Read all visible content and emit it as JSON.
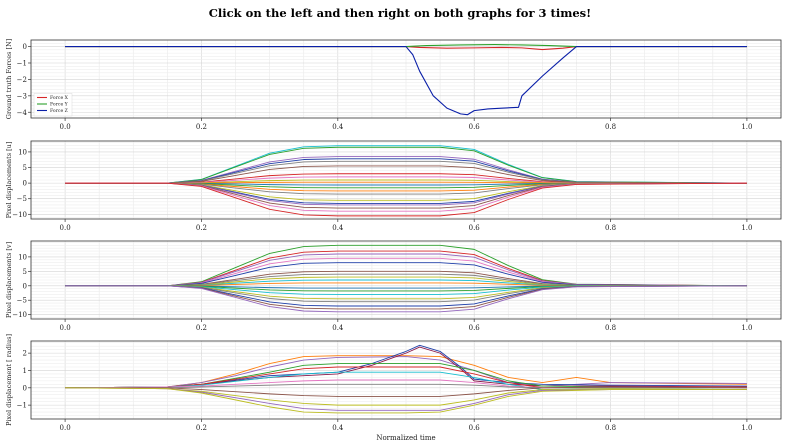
{
  "title": "Click on the left and then right on both graphs for 3 times!",
  "chart_data": [
    {
      "type": "line",
      "ylabel": "Ground truth Forces [N]",
      "xlabel": "",
      "xlim": [
        -0.05,
        1.05
      ],
      "ylim": [
        -4.35,
        0.4
      ],
      "xticks": [
        0.0,
        0.2,
        0.4,
        0.6,
        0.8,
        1.0
      ],
      "xtick_labels": [
        "0.0",
        "0.2",
        "0.4",
        "0.6",
        "0.8",
        "1.0"
      ],
      "yticks": [
        0,
        -1,
        -2,
        -3,
        -4
      ],
      "ytick_labels": [
        "0",
        "−1",
        "−2",
        "−3",
        "−4"
      ],
      "grid": true,
      "legend_position": "bottom-left",
      "series": [
        {
          "name": "Force X",
          "color": "#d62728",
          "x": [
            0,
            0.5,
            0.52,
            0.56,
            0.6,
            0.64,
            0.67,
            0.7,
            0.73,
            0.75,
            1.0
          ],
          "y": [
            0,
            0,
            -0.05,
            -0.1,
            -0.08,
            -0.05,
            -0.08,
            -0.18,
            -0.1,
            0,
            0
          ]
        },
        {
          "name": "Force Y",
          "color": "#2ca02c",
          "x": [
            0,
            0.5,
            0.53,
            0.58,
            0.63,
            0.67,
            0.71,
            0.75,
            1.0
          ],
          "y": [
            0,
            0,
            0.06,
            0.1,
            0.12,
            0.1,
            0.06,
            0,
            0
          ]
        },
        {
          "name": "Force Z",
          "color": "#0a1fa8",
          "x": [
            0,
            0.5,
            0.51,
            0.52,
            0.54,
            0.56,
            0.58,
            0.59,
            0.6,
            0.62,
            0.64,
            0.665,
            0.67,
            0.7,
            0.73,
            0.75,
            1.0
          ],
          "y": [
            0,
            0,
            -0.5,
            -1.5,
            -3.0,
            -3.75,
            -4.1,
            -4.15,
            -3.9,
            -3.8,
            -3.75,
            -3.7,
            -3.0,
            -1.8,
            -0.7,
            0,
            0
          ]
        }
      ]
    },
    {
      "type": "line",
      "ylabel": "Pixel displacements [u]",
      "xlabel": "",
      "xlim": [
        -0.05,
        1.05
      ],
      "ylim": [
        -11.5,
        13.5
      ],
      "xticks": [
        0.0,
        0.2,
        0.4,
        0.6,
        0.8,
        1.0
      ],
      "xtick_labels": [
        "0.0",
        "0.2",
        "0.4",
        "0.6",
        "0.8",
        "1.0"
      ],
      "yticks": [
        10,
        5,
        0,
        -5,
        -10
      ],
      "ytick_labels": [
        "10",
        "5",
        "0",
        "−5",
        "−10"
      ],
      "grid": true,
      "series_template": {
        "x": [
          0,
          0.15,
          0.2,
          0.25,
          0.3,
          0.35,
          0.4,
          0.55,
          0.6,
          0.65,
          0.7,
          0.75,
          1.0
        ],
        "shape": [
          0,
          0,
          0.1,
          0.45,
          0.8,
          0.97,
          1.0,
          1.0,
          0.9,
          0.5,
          0.15,
          0.04,
          0
        ]
      },
      "series": [
        {
          "color": "#17becf",
          "amplitude": 12.0
        },
        {
          "color": "#2ca02c",
          "amplitude": 11.5
        },
        {
          "color": "#9467bd",
          "amplitude": 8.5
        },
        {
          "color": "#1f3fa8",
          "amplitude": 7.8
        },
        {
          "color": "#7f7f7f",
          "amplitude": 7.0
        },
        {
          "color": "#8c564b",
          "amplitude": 5.5
        },
        {
          "color": "#d62728",
          "amplitude": 3.0
        },
        {
          "color": "#e377c2",
          "amplitude": 2.0
        },
        {
          "color": "#bcbd22",
          "amplitude": 1.0
        },
        {
          "color": "#ff7f0e",
          "amplitude": 0.3
        },
        {
          "color": "#1f77b4",
          "amplitude": -0.6
        },
        {
          "color": "#2ca02c",
          "amplitude": -1.5
        },
        {
          "color": "#ff7f0e",
          "amplitude": -2.5
        },
        {
          "color": "#7f7f7f",
          "amplitude": -3.5
        },
        {
          "color": "#bcbd22",
          "amplitude": -5.5
        },
        {
          "color": "#1f3fa8",
          "amplitude": -6.5
        },
        {
          "color": "#9467bd",
          "amplitude": -7.0
        },
        {
          "color": "#8c564b",
          "amplitude": -8.0
        },
        {
          "color": "#e377c2",
          "amplitude": -9.0
        },
        {
          "color": "#d62728",
          "amplitude": -10.5
        }
      ]
    },
    {
      "type": "line",
      "ylabel": "Pixel displacements [v]",
      "xlabel": "",
      "xlim": [
        -0.05,
        1.05
      ],
      "ylim": [
        -11.5,
        15.5
      ],
      "xticks": [
        0.0,
        0.2,
        0.4,
        0.6,
        0.8,
        1.0
      ],
      "xtick_labels": [
        "0.0",
        "0.2",
        "0.4",
        "0.6",
        "0.8",
        "1.0"
      ],
      "yticks": [
        10,
        5,
        0,
        -5,
        -10
      ],
      "ytick_labels": [
        "10",
        "5",
        "0",
        "−5",
        "−10"
      ],
      "grid": true,
      "series_template": {
        "x": [
          0,
          0.15,
          0.2,
          0.25,
          0.3,
          0.35,
          0.4,
          0.55,
          0.6,
          0.65,
          0.7,
          0.75,
          1.0
        ],
        "shape": [
          0,
          0,
          0.1,
          0.45,
          0.8,
          0.97,
          1.0,
          1.0,
          0.9,
          0.5,
          0.15,
          0.04,
          0
        ]
      },
      "series": [
        {
          "color": "#2ca02c",
          "amplitude": 14.0
        },
        {
          "color": "#d62728",
          "amplitude": 12.0
        },
        {
          "color": "#9467bd",
          "amplitude": 11.0
        },
        {
          "color": "#e377c2",
          "amplitude": 9.5
        },
        {
          "color": "#1f3fa8",
          "amplitude": 8.0
        },
        {
          "color": "#8c564b",
          "amplitude": 5.0
        },
        {
          "color": "#7f7f7f",
          "amplitude": 4.0
        },
        {
          "color": "#bcbd22",
          "amplitude": 3.0
        },
        {
          "color": "#17becf",
          "amplitude": 2.0
        },
        {
          "color": "#ff7f0e",
          "amplitude": 1.0
        },
        {
          "color": "#1f77b4",
          "amplitude": -0.8
        },
        {
          "color": "#2ca02c",
          "amplitude": -1.8
        },
        {
          "color": "#17becf",
          "amplitude": -3.0
        },
        {
          "color": "#bcbd22",
          "amplitude": -4.5
        },
        {
          "color": "#7f7f7f",
          "amplitude": -5.5
        },
        {
          "color": "#1f3fa8",
          "amplitude": -7.0
        },
        {
          "color": "#8c564b",
          "amplitude": -8.0
        },
        {
          "color": "#9467bd",
          "amplitude": -9.0
        }
      ]
    },
    {
      "type": "line",
      "ylabel": "Pixel displacement [ radius]",
      "xlabel": "Normalized time",
      "xlim": [
        -0.05,
        1.05
      ],
      "ylim": [
        -1.8,
        2.7
      ],
      "xticks": [
        0.0,
        0.2,
        0.4,
        0.6,
        0.8,
        1.0
      ],
      "xtick_labels": [
        "0.0",
        "0.2",
        "0.4",
        "0.6",
        "0.8",
        "1.0"
      ],
      "yticks": [
        2,
        1,
        0,
        -1
      ],
      "ytick_labels": [
        "2",
        "1",
        "0",
        "−1"
      ],
      "grid": true,
      "series": [
        {
          "color": "#ff7f0e",
          "x": [
            0,
            0.15,
            0.2,
            0.25,
            0.3,
            0.35,
            0.4,
            0.5,
            0.55,
            0.6,
            0.65,
            0.7,
            0.75,
            0.8,
            1.0
          ],
          "y": [
            0,
            0.05,
            0.3,
            0.8,
            1.4,
            1.8,
            1.85,
            1.85,
            1.8,
            1.3,
            0.6,
            0.3,
            0.6,
            0.3,
            0.2
          ]
        },
        {
          "color": "#9467bd",
          "x": [
            0,
            0.15,
            0.2,
            0.25,
            0.3,
            0.35,
            0.4,
            0.5,
            0.55,
            0.6,
            0.65,
            0.7,
            0.75,
            0.8,
            1.0
          ],
          "y": [
            0,
            0.05,
            0.3,
            0.7,
            1.2,
            1.6,
            1.75,
            1.8,
            1.6,
            1.0,
            0.3,
            0.1,
            0.2,
            0.3,
            0.25
          ]
        },
        {
          "color": "#1f3fa8",
          "x": [
            0,
            0.15,
            0.2,
            0.3,
            0.4,
            0.45,
            0.5,
            0.52,
            0.55,
            0.58,
            0.6,
            0.65,
            0.7,
            0.8,
            1.0
          ],
          "y": [
            0,
            0.05,
            0.2,
            0.7,
            0.9,
            1.4,
            2.1,
            2.45,
            2.1,
            1.2,
            0.5,
            0.3,
            0.2,
            0.15,
            0.1
          ]
        },
        {
          "color": "#8b1a4a",
          "x": [
            0,
            0.15,
            0.2,
            0.3,
            0.4,
            0.45,
            0.5,
            0.52,
            0.55,
            0.58,
            0.6,
            0.65,
            0.7,
            0.8,
            1.0
          ],
          "y": [
            0,
            0.05,
            0.2,
            0.6,
            0.8,
            1.3,
            2.0,
            2.35,
            2.0,
            1.1,
            0.4,
            0.2,
            0.1,
            0.1,
            0.05
          ]
        },
        {
          "color": "#2ca02c",
          "x": [
            0,
            0.15,
            0.2,
            0.3,
            0.35,
            0.4,
            0.55,
            0.6,
            0.65,
            0.7,
            0.8,
            1.0
          ],
          "y": [
            0,
            0.05,
            0.2,
            0.9,
            1.3,
            1.4,
            1.4,
            1.0,
            0.4,
            0.1,
            0.05,
            0
          ]
        },
        {
          "color": "#d62728",
          "x": [
            0,
            0.15,
            0.2,
            0.3,
            0.35,
            0.4,
            0.55,
            0.6,
            0.65,
            0.7,
            0.8,
            1.0
          ],
          "y": [
            0,
            0.05,
            0.2,
            0.8,
            1.1,
            1.2,
            1.2,
            0.8,
            0.3,
            0.0,
            0.05,
            0.05
          ]
        },
        {
          "color": "#17becf",
          "x": [
            0,
            0.15,
            0.2,
            0.3,
            0.35,
            0.4,
            0.55,
            0.6,
            0.65,
            0.7,
            0.8,
            1.0
          ],
          "y": [
            0,
            0.05,
            0.15,
            0.6,
            0.8,
            0.9,
            0.9,
            0.6,
            0.2,
            -0.1,
            -0.05,
            -0.1
          ]
        },
        {
          "color": "#e377c2",
          "x": [
            0,
            0.15,
            0.2,
            0.3,
            0.35,
            0.4,
            0.55,
            0.6,
            0.65,
            0.7,
            0.8,
            1.0
          ],
          "y": [
            0,
            0.05,
            0.1,
            0.3,
            0.4,
            0.45,
            0.45,
            0.3,
            0.1,
            0.0,
            0.05,
            0.0
          ]
        },
        {
          "color": "#7f7f7f",
          "x": [
            0,
            0.15,
            0.2,
            0.3,
            0.35,
            0.4,
            0.55,
            0.6,
            0.65,
            0.7,
            0.8,
            1.0
          ],
          "y": [
            0,
            0.0,
            0.05,
            0.15,
            0.2,
            0.2,
            0.2,
            0.15,
            0.05,
            0.0,
            0.0,
            0.0
          ]
        },
        {
          "color": "#8c564b",
          "x": [
            0,
            0.15,
            0.2,
            0.3,
            0.35,
            0.4,
            0.55,
            0.6,
            0.65,
            0.7,
            0.8,
            1.0
          ],
          "y": [
            0,
            0.0,
            -0.1,
            -0.35,
            -0.45,
            -0.5,
            -0.5,
            -0.35,
            -0.15,
            0.0,
            0.05,
            0.0
          ]
        },
        {
          "color": "#bcbd22",
          "x": [
            0,
            0.15,
            0.2,
            0.3,
            0.35,
            0.4,
            0.55,
            0.6,
            0.65,
            0.7,
            0.8,
            1.0
          ],
          "y": [
            0,
            -0.05,
            -0.2,
            -0.7,
            -0.9,
            -1.0,
            -1.0,
            -0.7,
            -0.3,
            -0.1,
            -0.05,
            -0.1
          ]
        },
        {
          "color": "#9467bd",
          "x": [
            0,
            0.15,
            0.2,
            0.3,
            0.35,
            0.4,
            0.55,
            0.6,
            0.65,
            0.7,
            0.8,
            1.0
          ],
          "y": [
            0,
            -0.05,
            -0.25,
            -0.9,
            -1.2,
            -1.3,
            -1.3,
            -0.9,
            -0.4,
            -0.15,
            -0.1,
            -0.1
          ]
        },
        {
          "color": "#bcbd22",
          "x": [
            0,
            0.15,
            0.2,
            0.3,
            0.35,
            0.4,
            0.5,
            0.55,
            0.6,
            0.65,
            0.7,
            0.8,
            1.0
          ],
          "y": [
            0,
            -0.05,
            -0.3,
            -1.1,
            -1.4,
            -1.45,
            -1.45,
            -1.4,
            -1.0,
            -0.5,
            -0.2,
            -0.1,
            -0.1
          ]
        }
      ]
    }
  ]
}
